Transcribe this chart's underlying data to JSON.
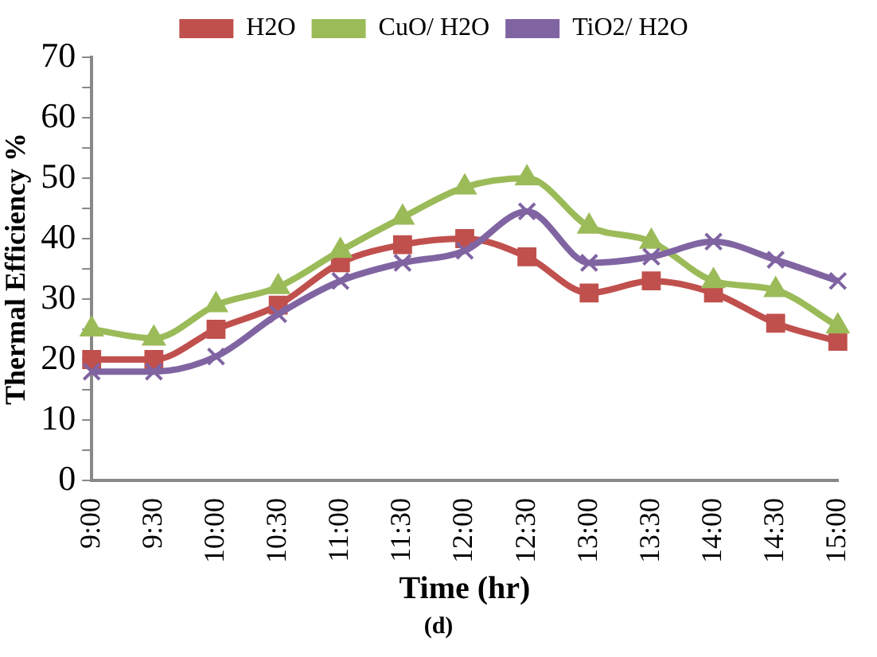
{
  "chart_data": {
    "type": "line",
    "xlabel": "Time (hr)",
    "ylabel": "Thermal Efficiency %",
    "annotations": [
      "(d)"
    ],
    "categories": [
      "9:00",
      "9:30",
      "10:00",
      "10:30",
      "11:00",
      "11:30",
      "12:00",
      "12:30",
      "13:00",
      "13:30",
      "14:00",
      "14:30",
      "15:00"
    ],
    "series": [
      {
        "name": "H2O",
        "color": "#c0504d",
        "marker": "square",
        "values": [
          20,
          20,
          25,
          29,
          36,
          39,
          40,
          37,
          31,
          33,
          31,
          26,
          23
        ]
      },
      {
        "name": "CuO/ H2O",
        "color": "#9bbb59",
        "marker": "triangle",
        "values": [
          25,
          23.5,
          29,
          32,
          38,
          43.5,
          48.5,
          50,
          42,
          39.5,
          33,
          31.5,
          25.5
        ]
      },
      {
        "name": "TiO2/ H2O",
        "color": "#8064a2",
        "marker": "cross",
        "values": [
          18,
          18,
          20.5,
          27.5,
          33,
          36,
          38,
          44.5,
          36,
          37,
          39.5,
          36.5,
          33
        ]
      }
    ],
    "ylim": [
      0,
      70
    ],
    "yticks": [
      0,
      {
        "value": 5,
        "label": null
      },
      10,
      {
        "value": 15,
        "label": null
      },
      20,
      {
        "value": 25,
        "label": null
      },
      30,
      {
        "value": 35,
        "label": null
      },
      40,
      {
        "value": 45,
        "label": null
      },
      50,
      {
        "value": 55,
        "label": null
      },
      60,
      {
        "value": 65,
        "label": null
      },
      70
    ],
    "grid": false,
    "legend": "top",
    "line_style": "solid"
  }
}
